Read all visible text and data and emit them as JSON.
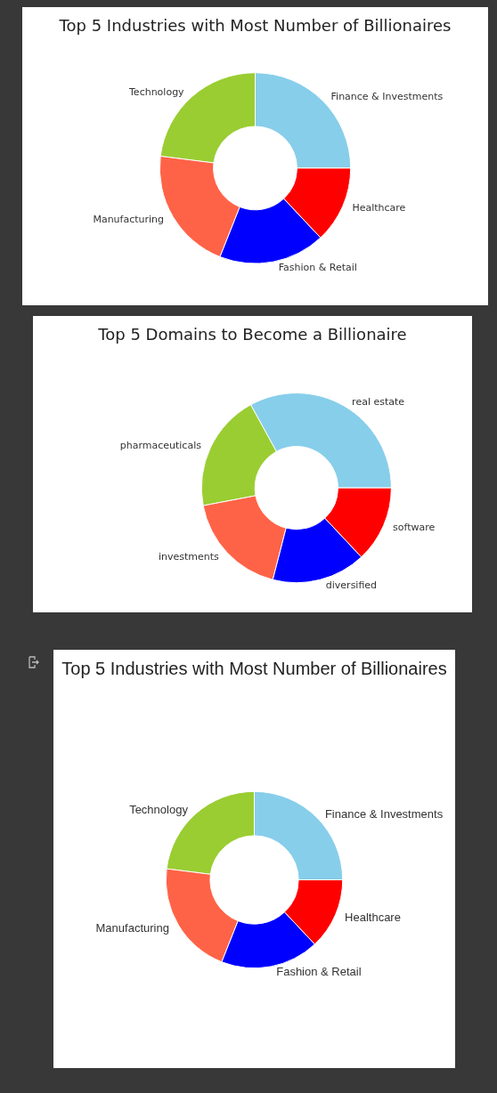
{
  "chart_data": [
    {
      "type": "donut",
      "title": "Top 5 Industries with Most Number of Billionaires",
      "categories": [
        "Finance & Investments",
        "Technology",
        "Manufacturing",
        "Fashion & Retail",
        "Healthcare"
      ],
      "values": [
        25,
        23,
        21,
        18,
        13
      ],
      "colors": [
        "#87ceeb",
        "#9acd32",
        "#ff6347",
        "#0000ff",
        "#ff0000"
      ],
      "legend": false
    },
    {
      "type": "donut",
      "title": "Top 5 Domains to Become a Billionaire",
      "categories": [
        "real estate",
        "pharmaceuticals",
        "investments",
        "diversified",
        "software"
      ],
      "values": [
        33,
        20,
        18,
        16,
        13
      ],
      "colors": [
        "#87ceeb",
        "#9acd32",
        "#ff6347",
        "#0000ff",
        "#ff0000"
      ],
      "legend": false
    },
    {
      "type": "donut",
      "title": "Top 5 Industries with Most Number of Billionaires",
      "categories": [
        "Finance & Investments",
        "Technology",
        "Manufacturing",
        "Fashion & Retail",
        "Healthcare"
      ],
      "values": [
        25,
        23,
        21,
        18,
        13
      ],
      "colors": [
        "#87ceeb",
        "#9acd32",
        "#ff6347",
        "#0000ff",
        "#ff0000"
      ],
      "legend": false
    }
  ]
}
